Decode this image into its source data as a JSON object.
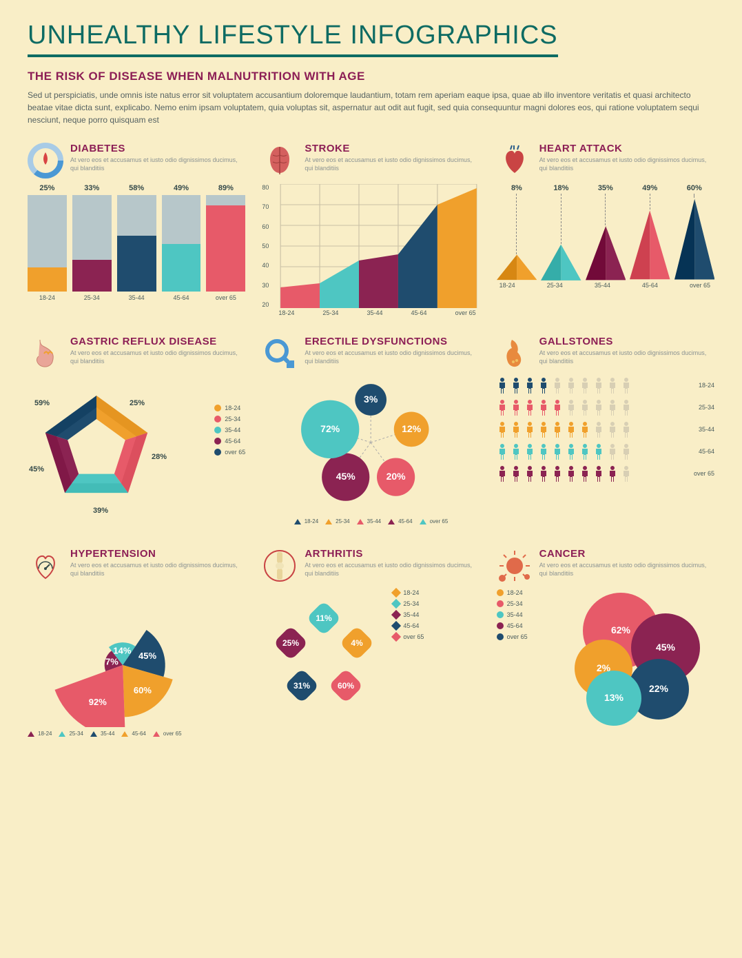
{
  "background_color": "#f9eec7",
  "palette": {
    "orange": "#f0a02c",
    "pink": "#e75a69",
    "teal": "#4ec6c2",
    "maroon": "#8b2352",
    "navy": "#1f4c6e",
    "gray": "#b7c7ca",
    "dark_teal_text": "#0e6b63",
    "subtitle_color": "#8c1e55"
  },
  "age_groups": [
    "18-24",
    "25-34",
    "35-44",
    "45-64",
    "over 65"
  ],
  "main_title": "UNHEALTHY LIFESTYLE INFOGRAPHICS",
  "subtitle": "THE RISK OF DISEASE WHEN MALNUTRITION WITH AGE",
  "intro": "Sed ut perspiciatis, unde omnis iste natus error sit voluptatem accusantium doloremque laudantium, totam rem aperiam eaque ipsa, quae ab illo inventore veritatis et quasi architecto beatae vitae dicta sunt, explicabo. Nemo enim ipsam voluptatem, quia voluptas sit, aspernatur aut odit aut fugit, sed quia consequuntur magni dolores eos, qui ratione voluptatem sequi nesciunt, neque porro quisquam est",
  "panel_desc": "At vero eos et accusamus et iusto odio dignissimos ducimus, qui blanditiis",
  "diabetes": {
    "title": "DIABETES",
    "type": "bar",
    "values": [
      25,
      33,
      58,
      49,
      89
    ],
    "bar_max": 100,
    "colors": [
      "#f0a02c",
      "#8b2352",
      "#1f4c6e",
      "#4ec6c2",
      "#e75a69"
    ],
    "track_color": "#b7c7ca",
    "label_fontsize": 11
  },
  "stroke": {
    "title": "STROKE",
    "type": "area",
    "ymin": 20,
    "ymax": 80,
    "ytick_step": 10,
    "values": [
      32,
      43,
      46,
      70,
      78
    ],
    "colors": [
      "#e75a69",
      "#4ec6c2",
      "#8b2352",
      "#1f4c6e",
      "#f0a02c"
    ],
    "grid_color": "#c9c0a6"
  },
  "heart_attack": {
    "title": "HEART ATTACK",
    "type": "pyramid",
    "values": [
      8,
      18,
      35,
      49,
      60
    ],
    "max": 60,
    "colors": [
      "#f0a02c",
      "#4ec6c2",
      "#8b2352",
      "#e75a69",
      "#1f4c6e"
    ]
  },
  "gastric": {
    "title": "GASTRIC REFLUX DISEASE",
    "type": "pentagon",
    "values": [
      25,
      28,
      39,
      45,
      59
    ],
    "colors": [
      "#f0a02c",
      "#e75a69",
      "#4ec6c2",
      "#8b2352",
      "#1f4c6e"
    ],
    "legend_shape": "circle"
  },
  "erectile": {
    "title": "ERECTILE DYSFUNCTIONS",
    "type": "bubble-ring",
    "values": [
      3,
      12,
      20,
      45,
      72
    ],
    "colors": [
      "#1f4c6e",
      "#f0a02c",
      "#e75a69",
      "#8b2352",
      "#4ec6c2"
    ],
    "legend_shape": "triangle"
  },
  "gallstones": {
    "title": "GALLSTONES",
    "type": "pictogram",
    "per_row": 10,
    "counts": [
      4,
      5,
      7,
      8,
      9
    ],
    "colors": [
      "#1f4c6e",
      "#e75a69",
      "#f0a02c",
      "#4ec6c2",
      "#8b2352"
    ],
    "empty_color": "#d8cfb4"
  },
  "hypertension": {
    "title": "HYPERTENSION",
    "type": "polar-area",
    "values": [
      7,
      14,
      45,
      60,
      92
    ],
    "max": 92,
    "colors": [
      "#8b2352",
      "#4ec6c2",
      "#1f4c6e",
      "#f0a02c",
      "#e75a69"
    ],
    "legend_shape": "triangle"
  },
  "arthritis": {
    "title": "ARTHRITIS",
    "type": "petal",
    "values": [
      4,
      11,
      25,
      31,
      60
    ],
    "display_order": [
      11,
      4,
      25,
      31,
      60
    ],
    "colors": [
      "#f0a02c",
      "#4ec6c2",
      "#8b2352",
      "#1f4c6e",
      "#e75a69"
    ],
    "legend_shape": "diamond"
  },
  "cancer": {
    "title": "CANCER",
    "type": "overlapping-circles",
    "values": [
      62,
      2,
      45,
      13,
      22
    ],
    "colors": [
      "#e75a69",
      "#f0a02c",
      "#8b2352",
      "#4ec6c2",
      "#1f4c6e"
    ],
    "legend_colors": [
      "#f0a02c",
      "#e75a69",
      "#4ec6c2",
      "#8b2352",
      "#1f4c6e"
    ],
    "legend_shape": "circle"
  }
}
